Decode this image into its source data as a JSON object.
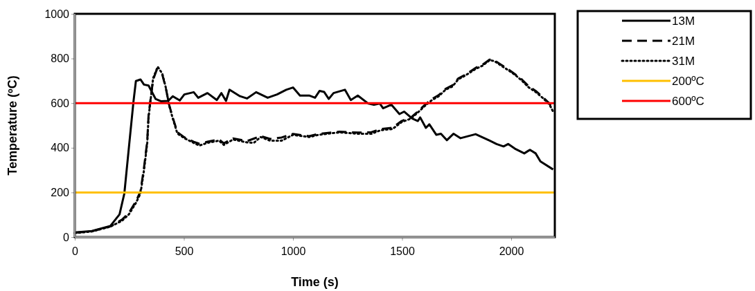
{
  "chart_data": {
    "type": "line",
    "xlabel": "Time (s)",
    "ylabel": "Temperature (ºC)",
    "xlim": [
      0,
      2200
    ],
    "ylim": [
      0,
      1000
    ],
    "xticks": [
      0,
      500,
      1000,
      1500,
      2000
    ],
    "yticks": [
      0,
      200,
      400,
      600,
      800,
      1000
    ],
    "grid": false,
    "legend": "right",
    "marker": "none",
    "series": [
      {
        "name": "13M",
        "color": "#000000",
        "line_style": "solid",
        "x": [
          0,
          78,
          163,
          205,
          227,
          248,
          269,
          280,
          301,
          317,
          338,
          370,
          396,
          428,
          449,
          481,
          502,
          545,
          566,
          608,
          651,
          672,
          693,
          709,
          757,
          789,
          831,
          884,
          927,
          969,
          1000,
          1032,
          1074,
          1101,
          1122,
          1143,
          1164,
          1186,
          1238,
          1265,
          1297,
          1345,
          1371,
          1398,
          1413,
          1451,
          1488,
          1509,
          1546,
          1572,
          1583,
          1609,
          1625,
          1657,
          1678,
          1705,
          1736,
          1768,
          1837,
          1901,
          1933,
          1965,
          1986,
          2017,
          2060,
          2086,
          2112,
          2134,
          2192
        ],
        "values": [
          21,
          27,
          50,
          102,
          195,
          402,
          608,
          699,
          706,
          683,
          679,
          619,
          608,
          610,
          631,
          612,
          639,
          649,
          624,
          645,
          614,
          645,
          610,
          660,
          631,
          621,
          649,
          624,
          639,
          660,
          670,
          634,
          634,
          624,
          655,
          650,
          619,
          645,
          660,
          614,
          634,
          598,
          593,
          598,
          577,
          593,
          551,
          562,
          531,
          520,
          536,
          489,
          505,
          458,
          463,
          434,
          463,
          443,
          461,
          432,
          417,
          406,
          417,
          396,
          375,
          391,
          375,
          339,
          303
        ]
      },
      {
        "name": "21M",
        "color": "#000000",
        "line_style": "dashed",
        "x": [
          0,
          78,
          163,
          216,
          248,
          280,
          301,
          317,
          332,
          338,
          348,
          359,
          375,
          401,
          417,
          433,
          449,
          470,
          502,
          545,
          571,
          608,
          661,
          683,
          725,
          789,
          852,
          895,
          948,
          1000,
          1074,
          1117,
          1212,
          1297,
          1360,
          1403,
          1456,
          1498,
          1541,
          1572,
          1604,
          1636,
          1668,
          1699,
          1731,
          1757,
          1795,
          1837,
          1869,
          1901,
          1922,
          1954,
          1986,
          2017,
          2049,
          2081,
          2112,
          2144,
          2176,
          2192
        ],
        "values": [
          19,
          26,
          48,
          78,
          108,
          160,
          205,
          310,
          430,
          545,
          625,
          705,
          748,
          728,
          668,
          590,
          535,
          470,
          447,
          427,
          418,
          427,
          437,
          420,
          442,
          430,
          452,
          440,
          446,
          462,
          452,
          462,
          472,
          468,
          470,
          484,
          490,
          520,
          536,
          562,
          592,
          618,
          636,
          664,
          680,
          710,
          730,
          758,
          772,
          795,
          792,
          772,
          752,
          730,
          706,
          675,
          655,
          628,
          598,
          568
        ]
      },
      {
        "name": "31M",
        "color": "#000000",
        "line_style": "dotted",
        "x": [
          0,
          78,
          163,
          216,
          248,
          280,
          301,
          317,
          332,
          338,
          348,
          359,
          380,
          401,
          417,
          433,
          449,
          470,
          502,
          545,
          571,
          608,
          661,
          683,
          725,
          789,
          820,
          852,
          895,
          948,
          1000,
          1074,
          1117,
          1212,
          1297,
          1360,
          1403,
          1456,
          1498,
          1541,
          1572,
          1604,
          1636,
          1668,
          1699,
          1731,
          1757,
          1795,
          1837,
          1869,
          1901,
          1922,
          1954,
          1986,
          2017,
          2049,
          2081,
          2112,
          2144,
          2176,
          2192
        ],
        "values": [
          18,
          25,
          47,
          73,
          102,
          153,
          195,
          298,
          422,
          536,
          619,
          712,
          763,
          732,
          670,
          588,
          531,
          464,
          443,
          422,
          410,
          422,
          432,
          413,
          437,
          424,
          422,
          448,
          432,
          432,
          458,
          448,
          458,
          469,
          463,
          463,
          479,
          484,
          515,
          531,
          558,
          587,
          613,
          631,
          660,
          675,
          706,
          727,
          753,
          768,
          792,
          789,
          768,
          748,
          727,
          701,
          670,
          650,
          624,
          593,
          562
        ]
      },
      {
        "name": "200ºC",
        "color": "#ffc000",
        "line_style": "solid",
        "x": [
          0,
          2200
        ],
        "values": [
          200,
          200
        ]
      },
      {
        "name": "600ºC",
        "color": "#ff0000",
        "line_style": "solid",
        "x": [
          0,
          2200
        ],
        "values": [
          600,
          600
        ]
      }
    ]
  }
}
